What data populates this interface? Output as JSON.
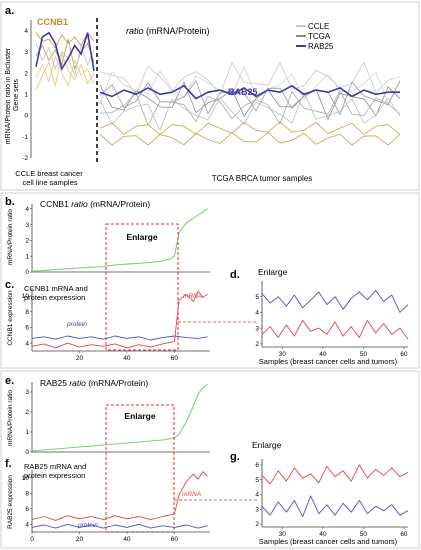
{
  "panel_labels": {
    "a": "a.",
    "b": "b.",
    "c": "c.",
    "d": "d.",
    "e": "e.",
    "f": "f.",
    "g": "g."
  },
  "panel_a": {
    "ccnb1_label": "CCNB1",
    "rab25_label": "RAB25",
    "ratio_italic": "ratio",
    "ratio_rest": " (mRNA/Protein)",
    "ylabel_line1": "mRNA/Protein ratio in Bicluster",
    "ylabel_line2": "Gene sets",
    "xlabel_left_line1": "CCLE breast cancer",
    "xlabel_left_line2": "cell line samples",
    "xlabel_right": "TCGA BRCA tumor samples",
    "legend": [
      "CCLE",
      "TCGA",
      "RAB25"
    ],
    "yticks": [
      "4",
      "3",
      "2",
      "1",
      "0",
      "-1",
      "-2"
    ]
  },
  "panel_b": {
    "title_gene": "CCNB1",
    "title_italic": "ratio",
    "title_rest": " (mRNA/Protein)",
    "ylabel": "mRNA/Protein ratio",
    "yticks": [
      "4",
      "3",
      "2",
      "1",
      "0"
    ],
    "enlarge": "Enlarge"
  },
  "panel_c": {
    "text_line1": "CCNB1 mRNA and",
    "text_line2": "protein expression",
    "ylabel": "CCNB1 expression",
    "protein_label": "protein",
    "mrna_label": "mRNA",
    "yticks": [
      "10",
      "8",
      "6",
      "4"
    ],
    "xticks": [
      "20",
      "40",
      "60"
    ]
  },
  "panel_d": {
    "title": "Enlarge",
    "yticks": [
      "5",
      "4",
      "3",
      "2"
    ],
    "xticks": [
      "30",
      "40",
      "50",
      "60"
    ],
    "xlabel": "Samples (breast cancer cells and tumors)"
  },
  "panel_e": {
    "title_gene": "RAB25",
    "title_italic": "ratio",
    "title_rest": " (mRNA/Protein)",
    "ylabel": "mRNA/Protein ratio",
    "yticks": [
      "3",
      "2",
      "1",
      "0"
    ],
    "enlarge": "Enlarge"
  },
  "panel_f": {
    "text_line1": "RAB25 mRNA and",
    "text_line2": "protein expression",
    "ylabel": "RAB25 expression",
    "protein_label": "protein",
    "mrna_label": "mRNA",
    "yticks": [
      "10",
      "8",
      "6",
      "4"
    ],
    "xticks": [
      "0",
      "20",
      "40",
      "60"
    ]
  },
  "panel_g": {
    "title": "Enlarge",
    "yticks": [
      "6",
      "5",
      "4",
      "3",
      "2"
    ],
    "xticks": [
      "30",
      "40",
      "50",
      "60"
    ],
    "xlabel": "Samples (breast cancer cells and tumors)"
  },
  "colors": {
    "ccnb1": "#d08a2a",
    "rab25": "#3a3ab0",
    "ccle": "#c8c8c8",
    "tcga": "#8a8a8a",
    "gold": "#c9a24a",
    "green": "#7ed07e",
    "red": "#e04848",
    "blue": "#5050c8",
    "dashed_red": "#e03030",
    "border": "#bbbbbb"
  },
  "chart_data": [
    {
      "type": "line",
      "xlim": [
        0,
        60
      ],
      "ylim": [
        -2,
        4.5
      ],
      "series": [
        {
          "name": "CCNB1",
          "x": [
            0,
            1,
            2,
            3,
            4,
            5,
            6,
            7,
            8,
            9
          ],
          "values": [
            2.3,
            3.7,
            3.9,
            3.4,
            2.2,
            2.7,
            3.3,
            2.9,
            3.9,
            2.1
          ]
        },
        {
          "name": "RAB25",
          "x": [
            10,
            12,
            14,
            16,
            18,
            20,
            22,
            24,
            26,
            28,
            30,
            32,
            34,
            36,
            38,
            40,
            42,
            44,
            46,
            48,
            50,
            52,
            54,
            56,
            58,
            60
          ],
          "values": [
            1.1,
            0.9,
            1.2,
            1.0,
            1.3,
            1.0,
            1.1,
            1.4,
            0.8,
            1.1,
            1.2,
            1.0,
            1.3,
            0.9,
            1.2,
            1.1,
            1.4,
            1.0,
            1.2,
            1.1,
            1.3,
            0.9,
            1.2,
            1.0,
            1.1,
            1.1
          ]
        }
      ]
    },
    {
      "type": "line",
      "title": "CCNB1 ratio (mRNA/Protein)",
      "ylabel": "mRNA/Protein ratio",
      "xlim": [
        0,
        75
      ],
      "ylim": [
        0,
        4.3
      ],
      "series": [
        {
          "name": "ratio",
          "x": [
            0,
            5,
            10,
            15,
            20,
            25,
            30,
            35,
            40,
            45,
            50,
            55,
            58,
            60,
            62,
            65,
            68,
            70,
            72,
            74
          ],
          "values": [
            0.05,
            0.1,
            0.15,
            0.2,
            0.25,
            0.3,
            0.35,
            0.45,
            0.5,
            0.55,
            0.6,
            0.7,
            0.8,
            1.0,
            2.5,
            3.1,
            3.4,
            3.6,
            3.8,
            4.0
          ]
        }
      ]
    },
    {
      "type": "line",
      "ylabel": "CCNB1 expression",
      "xlim": [
        0,
        75
      ],
      "ylim": [
        3,
        11
      ],
      "series": [
        {
          "name": "protein",
          "x": [
            0,
            5,
            10,
            15,
            20,
            25,
            30,
            35,
            40,
            45,
            50,
            55,
            60,
            65,
            70,
            74
          ],
          "values": [
            4.6,
            4.8,
            4.5,
            4.9,
            4.6,
            4.8,
            4.5,
            4.9,
            4.6,
            4.8,
            4.4,
            4.7,
            4.9,
            4.7,
            4.6,
            4.8
          ]
        },
        {
          "name": "mRNA",
          "x": [
            0,
            5,
            10,
            15,
            20,
            25,
            30,
            35,
            40,
            45,
            50,
            55,
            60,
            62,
            65,
            68,
            70,
            72,
            74
          ],
          "values": [
            3.6,
            3.9,
            3.4,
            4.0,
            3.5,
            3.8,
            3.6,
            3.9,
            3.4,
            3.8,
            3.5,
            3.9,
            4.2,
            9.5,
            10.2,
            9.3,
            10.6,
            9.8,
            10.2
          ]
        }
      ]
    },
    {
      "type": "line",
      "title": "Enlarge",
      "xlabel": "Samples (breast cancer cells and tumors)",
      "xlim": [
        25,
        61
      ],
      "ylim": [
        1.8,
        6
      ],
      "series": [
        {
          "name": "protein",
          "x": [
            25,
            27,
            29,
            31,
            33,
            35,
            37,
            39,
            41,
            43,
            45,
            47,
            49,
            51,
            53,
            55,
            57,
            59,
            61
          ],
          "values": [
            5.2,
            4.6,
            5.0,
            4.4,
            5.1,
            4.3,
            4.8,
            5.3,
            4.5,
            5.0,
            4.2,
            4.9,
            5.3,
            4.8,
            5.4,
            4.7,
            5.1,
            4.0,
            4.5
          ]
        },
        {
          "name": "mRNA",
          "x": [
            25,
            27,
            29,
            31,
            33,
            35,
            37,
            39,
            41,
            43,
            45,
            47,
            49,
            51,
            53,
            55,
            57,
            59,
            61
          ],
          "values": [
            2.6,
            3.1,
            2.4,
            3.2,
            2.5,
            3.5,
            2.8,
            3.0,
            2.6,
            3.4,
            2.5,
            3.1,
            2.4,
            3.5,
            2.7,
            3.3,
            2.6,
            3.0,
            2.3
          ]
        }
      ]
    },
    {
      "type": "line",
      "title": "RAB25 ratio (mRNA/Protein)",
      "ylabel": "mRNA/Protein ratio",
      "xlim": [
        0,
        75
      ],
      "ylim": [
        0,
        3.5
      ],
      "series": [
        {
          "name": "ratio",
          "x": [
            0,
            5,
            10,
            15,
            20,
            25,
            30,
            35,
            40,
            45,
            50,
            55,
            60,
            62,
            65,
            68,
            70,
            72,
            74
          ],
          "values": [
            0.05,
            0.1,
            0.15,
            0.2,
            0.25,
            0.3,
            0.35,
            0.4,
            0.45,
            0.5,
            0.55,
            0.6,
            0.7,
            0.9,
            1.5,
            2.3,
            2.9,
            3.2,
            3.4
          ]
        }
      ]
    },
    {
      "type": "line",
      "ylabel": "RAB25 expression",
      "xlim": [
        0,
        75
      ],
      "ylim": [
        3,
        11
      ],
      "series": [
        {
          "name": "protein",
          "x": [
            0,
            5,
            10,
            15,
            20,
            25,
            30,
            35,
            40,
            45,
            50,
            55,
            60,
            65,
            70,
            74
          ],
          "values": [
            3.6,
            3.9,
            3.5,
            4.0,
            3.6,
            3.9,
            3.5,
            3.9,
            3.6,
            4.0,
            3.5,
            3.8,
            3.6,
            3.9,
            3.5,
            3.8
          ]
        },
        {
          "name": "mRNA",
          "x": [
            0,
            5,
            10,
            15,
            20,
            25,
            30,
            35,
            40,
            45,
            50,
            55,
            60,
            62,
            65,
            68,
            70,
            72,
            74
          ],
          "values": [
            4.6,
            5.0,
            4.5,
            5.1,
            4.7,
            5.0,
            4.6,
            5.1,
            4.7,
            5.0,
            4.6,
            5.0,
            5.3,
            7.8,
            9.5,
            10.5,
            9.8,
            10.8,
            10.2
          ]
        }
      ]
    },
    {
      "type": "line",
      "title": "Enlarge",
      "xlabel": "Samples (breast cancer cells and tumors)",
      "xlim": [
        25,
        61
      ],
      "ylim": [
        1.8,
        6.4
      ],
      "series": [
        {
          "name": "mRNA",
          "x": [
            25,
            27,
            29,
            31,
            33,
            35,
            37,
            39,
            41,
            43,
            45,
            47,
            49,
            51,
            53,
            55,
            57,
            59,
            61
          ],
          "values": [
            5.3,
            4.7,
            5.6,
            4.9,
            5.8,
            5.1,
            5.4,
            4.8,
            5.9,
            5.2,
            5.6,
            4.9,
            6.0,
            5.1,
            5.7,
            5.3,
            5.8,
            5.2,
            5.5
          ]
        },
        {
          "name": "protein",
          "x": [
            25,
            27,
            29,
            31,
            33,
            35,
            37,
            39,
            41,
            43,
            45,
            47,
            49,
            51,
            53,
            55,
            57,
            59,
            61
          ],
          "values": [
            3.2,
            2.6,
            3.5,
            2.8,
            3.6,
            2.5,
            3.9,
            2.7,
            3.3,
            2.6,
            3.4,
            2.8,
            3.6,
            2.7,
            3.2,
            2.9,
            3.3,
            2.6,
            2.9
          ]
        }
      ]
    }
  ]
}
